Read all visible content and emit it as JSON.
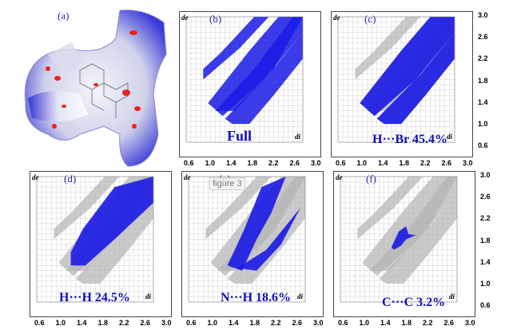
{
  "figure": {
    "surface_label": "(a)",
    "overlay_caption": "figure 3",
    "axis_de": "de",
    "axis_di": "di",
    "x_ticks": [
      "0.6",
      "1.0",
      "1.4",
      "1.8",
      "2.2",
      "2.6",
      "3.0"
    ],
    "y_ticks": [
      "3.0",
      "2.6",
      "2.2",
      "1.8",
      "1.4",
      "1.0",
      "0.6"
    ],
    "colors": {
      "fingerprint": "#1a1ae6",
      "gray": "#b4b4b4",
      "label": "#1010b8",
      "letter": "#2a2aa8"
    }
  },
  "chart_data": [
    {
      "type": "scatter",
      "panel": "(b)",
      "caption": "Full",
      "xlim": [
        0.6,
        3.0
      ],
      "ylim": [
        0.6,
        3.0
      ],
      "grid": true
    },
    {
      "type": "scatter",
      "panel": "(c)",
      "caption": "H···Br 45.4%",
      "contact": "H···Br",
      "percent": 45.4,
      "xlim": [
        0.6,
        3.0
      ],
      "ylim": [
        0.6,
        3.0
      ],
      "grid": true
    },
    {
      "type": "scatter",
      "panel": "(d)",
      "caption": "H···H 24.5%",
      "contact": "H···H",
      "percent": 24.5,
      "xlim": [
        0.6,
        3.0
      ],
      "ylim": [
        0.6,
        3.0
      ],
      "grid": true
    },
    {
      "type": "scatter",
      "panel": "(e)",
      "caption": "N···H 18.6%",
      "contact": "N···H",
      "percent": 18.6,
      "xlim": [
        0.6,
        3.0
      ],
      "ylim": [
        0.6,
        3.0
      ],
      "grid": true
    },
    {
      "type": "scatter",
      "panel": "(f)",
      "caption": "C···C 3.2%",
      "contact": "C···C",
      "percent": 3.2,
      "xlim": [
        0.6,
        3.0
      ],
      "ylim": [
        0.6,
        3.0
      ],
      "grid": true
    }
  ]
}
